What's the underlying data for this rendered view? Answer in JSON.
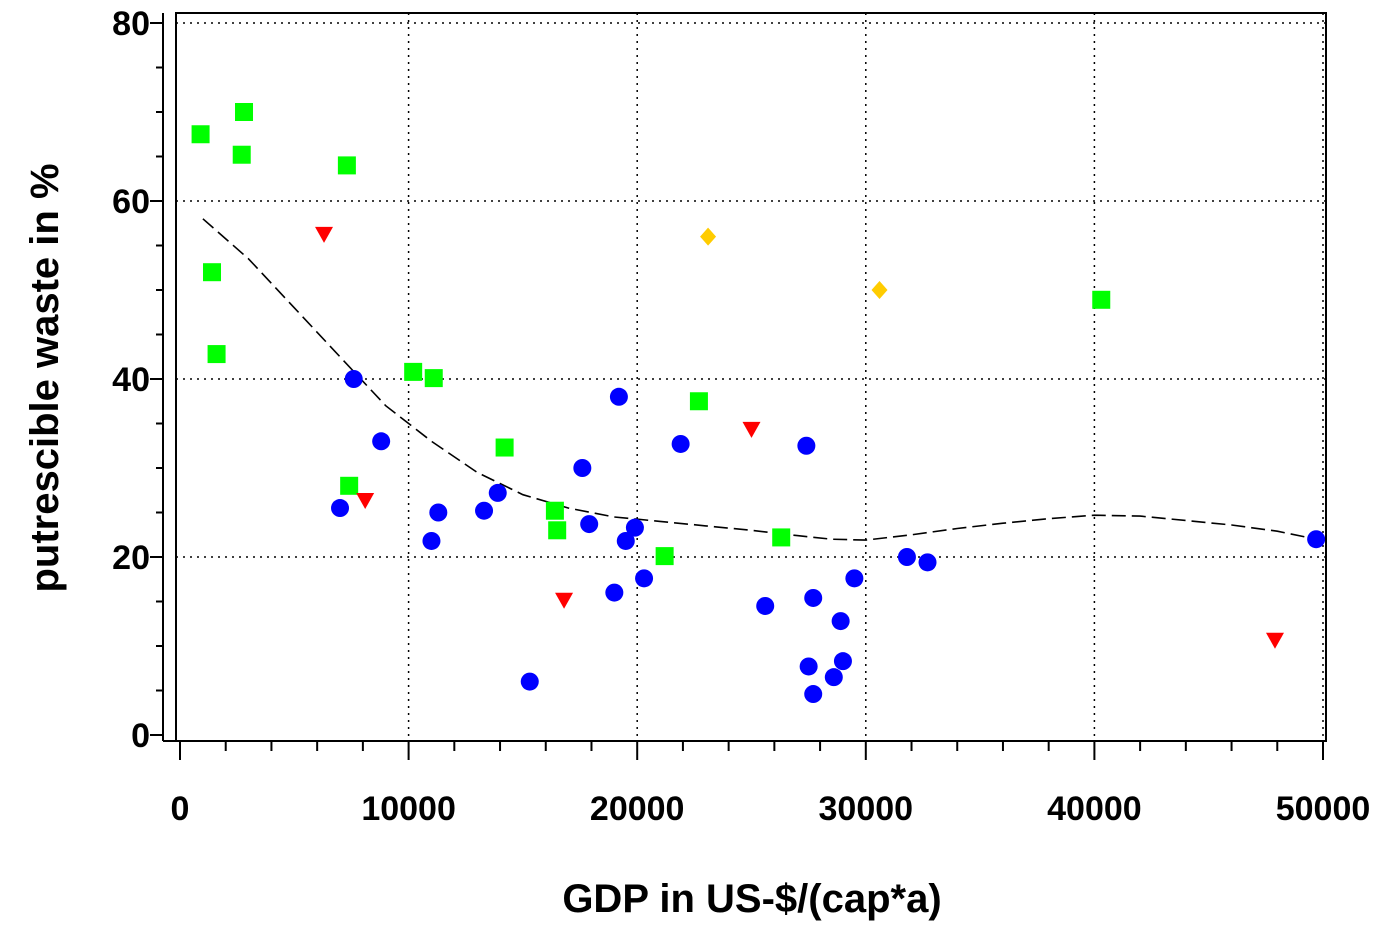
{
  "chart_data": {
    "type": "scatter",
    "title": "",
    "xlabel": "GDP in US-$/(cap*a)",
    "ylabel": "putrescible waste in %",
    "xlim": [
      0,
      50000
    ],
    "ylim": [
      0,
      80
    ],
    "x_ticks": [
      0,
      10000,
      20000,
      30000,
      40000,
      50000
    ],
    "y_ticks": [
      0,
      20,
      40,
      60,
      80
    ],
    "grid": true,
    "legend": "none",
    "series": [
      {
        "marker": "circle",
        "color": "#0000ff",
        "points": [
          [
            7000,
            25.5
          ],
          [
            7600,
            40
          ],
          [
            8800,
            33
          ],
          [
            11000,
            21.8
          ],
          [
            11300,
            25
          ],
          [
            13300,
            25.2
          ],
          [
            13900,
            27.2
          ],
          [
            15300,
            6
          ],
          [
            17600,
            30
          ],
          [
            17900,
            23.7
          ],
          [
            19000,
            16
          ],
          [
            19200,
            38
          ],
          [
            19500,
            21.8
          ],
          [
            19900,
            23.3
          ],
          [
            20300,
            17.6
          ],
          [
            21900,
            32.7
          ],
          [
            25600,
            14.5
          ],
          [
            27400,
            32.5
          ],
          [
            27500,
            7.7
          ],
          [
            27700,
            4.6
          ],
          [
            27700,
            15.4
          ],
          [
            28600,
            6.5
          ],
          [
            28900,
            12.8
          ],
          [
            29000,
            8.3
          ],
          [
            29500,
            17.6
          ],
          [
            31800,
            20
          ],
          [
            32700,
            19.4
          ],
          [
            49700,
            22
          ]
        ]
      },
      {
        "marker": "square",
        "color": "#00ff00",
        "points": [
          [
            900,
            67.5
          ],
          [
            1400,
            52
          ],
          [
            1600,
            42.8
          ],
          [
            2700,
            65.2
          ],
          [
            2800,
            70
          ],
          [
            7300,
            64
          ],
          [
            7400,
            28
          ],
          [
            10200,
            40.8
          ],
          [
            11100,
            40.1
          ],
          [
            14200,
            32.3
          ],
          [
            16400,
            25.2
          ],
          [
            16500,
            23
          ],
          [
            21200,
            20.1
          ],
          [
            22700,
            37.5
          ],
          [
            26300,
            22.2
          ],
          [
            40300,
            48.9
          ]
        ]
      },
      {
        "marker": "triangle-down",
        "color": "#ff0000",
        "points": [
          [
            6300,
            56.3
          ],
          [
            8100,
            26.4
          ],
          [
            16800,
            15.2
          ],
          [
            25000,
            34.4
          ],
          [
            47900,
            10.7
          ]
        ]
      },
      {
        "marker": "diamond",
        "color": "#ffcc00",
        "points": [
          [
            23100,
            56
          ],
          [
            30600,
            50
          ]
        ]
      }
    ],
    "trend_line": {
      "style": "dashed",
      "color": "#000000",
      "points": [
        [
          1000,
          58
        ],
        [
          3000,
          53.5
        ],
        [
          5000,
          48
        ],
        [
          7000,
          42.5
        ],
        [
          9000,
          37
        ],
        [
          11000,
          33
        ],
        [
          13000,
          29.5
        ],
        [
          15000,
          27
        ],
        [
          17000,
          25.5
        ],
        [
          19000,
          24.5
        ],
        [
          21000,
          24
        ],
        [
          23000,
          23.5
        ],
        [
          25000,
          23
        ],
        [
          27000,
          22.4
        ],
        [
          28500,
          22
        ],
        [
          30000,
          21.9
        ],
        [
          32000,
          22.5
        ],
        [
          34000,
          23.2
        ],
        [
          36000,
          23.8
        ],
        [
          38000,
          24.3
        ],
        [
          40000,
          24.7
        ],
        [
          42000,
          24.6
        ],
        [
          44000,
          24.1
        ],
        [
          46000,
          23.6
        ],
        [
          48000,
          22.9
        ],
        [
          49700,
          22
        ]
      ]
    }
  }
}
